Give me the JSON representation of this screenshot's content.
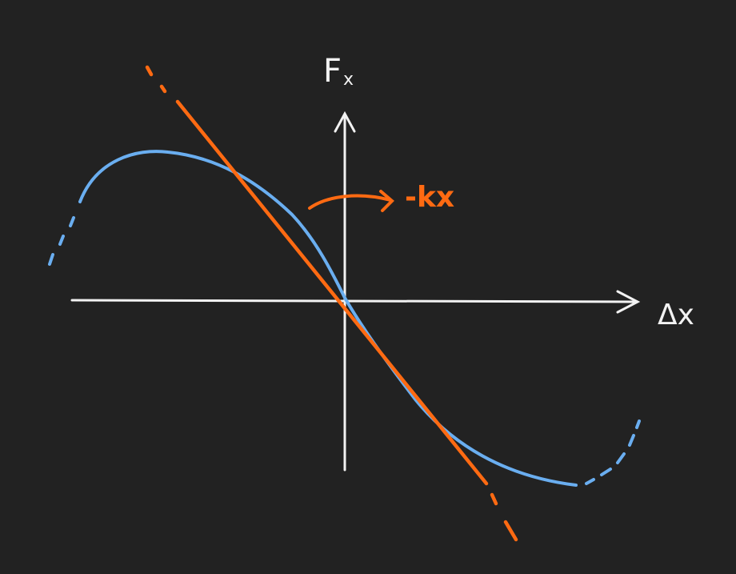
{
  "labels": {
    "y_axis": "F",
    "y_axis_subscript": "x",
    "x_axis": "Δx",
    "tangent_annotation": "-kx"
  },
  "colors": {
    "background": "#222222",
    "axes": "#f2f2f2",
    "curve": "#6aaef0",
    "tangent": "#ff6a12"
  }
}
